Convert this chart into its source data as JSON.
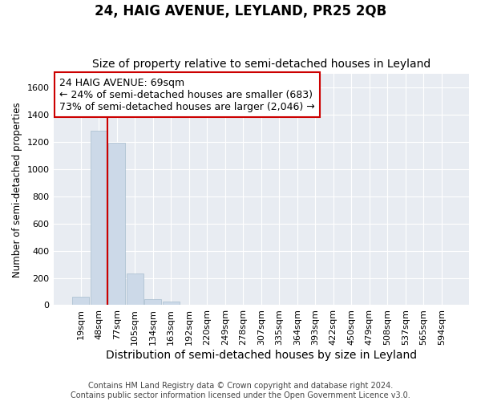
{
  "title1": "24, HAIG AVENUE, LEYLAND, PR25 2QB",
  "title2": "Size of property relative to semi-detached houses in Leyland",
  "xlabel": "Distribution of semi-detached houses by size in Leyland",
  "ylabel": "Number of semi-detached properties",
  "footer1": "Contains HM Land Registry data © Crown copyright and database right 2024.",
  "footer2": "Contains public sector information licensed under the Open Government Licence v3.0.",
  "categories": [
    "19sqm",
    "48sqm",
    "77sqm",
    "105sqm",
    "134sqm",
    "163sqm",
    "192sqm",
    "220sqm",
    "249sqm",
    "278sqm",
    "307sqm",
    "335sqm",
    "364sqm",
    "393sqm",
    "422sqm",
    "450sqm",
    "479sqm",
    "508sqm",
    "537sqm",
    "565sqm",
    "594sqm"
  ],
  "values": [
    60,
    1285,
    1195,
    230,
    45,
    25,
    0,
    0,
    0,
    0,
    0,
    0,
    0,
    0,
    0,
    0,
    0,
    0,
    0,
    0,
    0
  ],
  "bar_color": "#ccd9e8",
  "bar_edge_color": "#a8bece",
  "annotation_text_line1": "24 HAIG AVENUE: 69sqm",
  "annotation_text_line2": "← 24% of semi-detached houses are smaller (683)",
  "annotation_text_line3": "73% of semi-detached houses are larger (2,046) →",
  "annotation_box_facecolor": "#ffffff",
  "annotation_box_edgecolor": "#cc0000",
  "vline_color": "#cc0000",
  "vline_x": 1.47,
  "ylim": [
    0,
    1700
  ],
  "yticks": [
    0,
    200,
    400,
    600,
    800,
    1000,
    1200,
    1400,
    1600
  ],
  "background_color": "#ffffff",
  "plot_bg_color": "#e8ecf2",
  "grid_color": "#ffffff",
  "title1_fontsize": 12,
  "title2_fontsize": 10,
  "xlabel_fontsize": 10,
  "ylabel_fontsize": 8.5,
  "tick_fontsize": 8,
  "annotation_fontsize": 9,
  "footer_fontsize": 7
}
